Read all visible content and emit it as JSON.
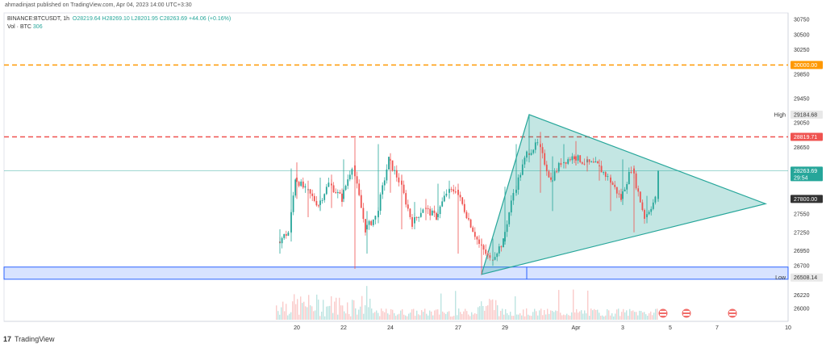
{
  "header": {
    "published": "ahmadinjast published on TradingView.com, Apr 04, 2023 14:00 UTC+3:30",
    "symbol": "BINANCE:BTCUSDT, 1h",
    "open": "O28219.64",
    "high": "H28269.10",
    "low": "L28201.95",
    "close": "C28263.69",
    "change": "+44.06 (+0.16%)",
    "vol_label": "Vol · BTC",
    "vol_value": "306"
  },
  "brand": {
    "logo": "17",
    "name": "TradingView"
  },
  "colors": {
    "up": "#26a69a",
    "down": "#ef5350",
    "triangle": "#26a69a",
    "resistance": "#ef5350",
    "target": "#ff9800",
    "support_zone": "#2962ff"
  },
  "chart_data": {
    "type": "candlestick",
    "instrument": "BINANCE:BTCUSDT",
    "timeframe": "1h",
    "x_ticks": [
      "20",
      "22",
      "24",
      "27",
      "29",
      "Apr",
      "3",
      "5",
      "7",
      "10"
    ],
    "y_ticks": [
      30750,
      30500,
      30250,
      29850,
      29450,
      29050,
      28650,
      27550,
      27250,
      26950,
      26700,
      26220,
      26000
    ],
    "ylim": [
      25900,
      30850
    ],
    "price_labels": [
      {
        "name": "target",
        "value": "30000.00",
        "color": "#ff9800"
      },
      {
        "name": "high",
        "label": "High",
        "value": "29184.68",
        "color": "#e8e8e8"
      },
      {
        "name": "resistance",
        "value": "28819.71",
        "color": "#ef5350"
      },
      {
        "name": "last",
        "value": "28263.69",
        "countdown": "29:54",
        "color": "#26a69a"
      },
      {
        "name": "level",
        "value": "27800.00",
        "color": "#333333"
      },
      {
        "name": "low",
        "label": "Low",
        "value": "26508.14",
        "color": "#e8e8e8"
      }
    ],
    "horizontal_lines": [
      {
        "value": 30000,
        "style": "dashed",
        "color": "#ff9800"
      },
      {
        "value": 28819.71,
        "style": "dashed",
        "color": "#ef5350"
      }
    ],
    "support_zone": {
      "from": 26480,
      "to": 26680
    },
    "triangle": {
      "points": [
        [
          "Mar 28",
          26560
        ],
        [
          "Mar 30",
          29184.68
        ],
        [
          "Apr 8",
          27720
        ]
      ]
    },
    "series": [
      {
        "candles": [
          {
            "t": "Mar 19",
            "o": 27100,
            "h": 27300,
            "l": 26900,
            "c": 27250
          },
          {
            "t": "Mar 19",
            "o": 27250,
            "h": 28300,
            "l": 27100,
            "c": 28150
          },
          {
            "t": "Mar 20",
            "o": 28150,
            "h": 28400,
            "l": 27800,
            "c": 27950
          },
          {
            "t": "Mar 20",
            "o": 27950,
            "h": 28100,
            "l": 27500,
            "c": 27700
          },
          {
            "t": "Mar 21",
            "o": 27700,
            "h": 28150,
            "l": 27600,
            "c": 28050
          },
          {
            "t": "Mar 21",
            "o": 28050,
            "h": 28200,
            "l": 27650,
            "c": 27800
          },
          {
            "t": "Mar 22",
            "o": 27800,
            "h": 28450,
            "l": 27750,
            "c": 28350
          },
          {
            "t": "Mar 22",
            "o": 28350,
            "h": 28800,
            "l": 26650,
            "c": 27300
          },
          {
            "t": "Mar 23",
            "o": 27300,
            "h": 27600,
            "l": 26900,
            "c": 27500
          },
          {
            "t": "Mar 23",
            "o": 27500,
            "h": 28700,
            "l": 27400,
            "c": 28450
          },
          {
            "t": "Mar 24",
            "o": 28450,
            "h": 28550,
            "l": 27900,
            "c": 28100
          },
          {
            "t": "Mar 24",
            "o": 28100,
            "h": 28200,
            "l": 27300,
            "c": 27400
          },
          {
            "t": "Mar 25",
            "o": 27400,
            "h": 27750,
            "l": 27300,
            "c": 27650
          },
          {
            "t": "Mar 25",
            "o": 27650,
            "h": 27800,
            "l": 27450,
            "c": 27500
          },
          {
            "t": "Mar 26",
            "o": 27500,
            "h": 28050,
            "l": 27450,
            "c": 27900
          },
          {
            "t": "Mar 26",
            "o": 27900,
            "h": 28100,
            "l": 27800,
            "c": 27950
          },
          {
            "t": "Mar 27",
            "o": 27950,
            "h": 28050,
            "l": 26900,
            "c": 27050
          },
          {
            "t": "Mar 28",
            "o": 27050,
            "h": 27150,
            "l": 26560,
            "c": 26800
          },
          {
            "t": "Mar 28",
            "o": 26800,
            "h": 27150,
            "l": 26700,
            "c": 27100
          },
          {
            "t": "Mar 29",
            "o": 27100,
            "h": 28000,
            "l": 27050,
            "c": 27900
          },
          {
            "t": "Mar 29",
            "o": 27900,
            "h": 28700,
            "l": 27850,
            "c": 28550
          },
          {
            "t": "Mar 30",
            "o": 28550,
            "h": 29170,
            "l": 28400,
            "c": 28700
          },
          {
            "t": "Mar 30",
            "o": 28700,
            "h": 28900,
            "l": 27900,
            "c": 28100
          },
          {
            "t": "Mar 31",
            "o": 28100,
            "h": 28500,
            "l": 27600,
            "c": 28400
          },
          {
            "t": "Mar 31",
            "o": 28400,
            "h": 28700,
            "l": 28300,
            "c": 28500
          },
          {
            "t": "Apr 1",
            "o": 28500,
            "h": 28750,
            "l": 28350,
            "c": 28400
          },
          {
            "t": "Apr 1",
            "o": 28400,
            "h": 28500,
            "l": 28250,
            "c": 28350
          },
          {
            "t": "Apr 2",
            "o": 28350,
            "h": 28450,
            "l": 28100,
            "c": 28150
          },
          {
            "t": "Apr 2",
            "o": 28150,
            "h": 28200,
            "l": 27600,
            "c": 27800
          },
          {
            "t": "Apr 3",
            "o": 27800,
            "h": 28450,
            "l": 27700,
            "c": 28300
          },
          {
            "t": "Apr 3",
            "o": 28300,
            "h": 28350,
            "l": 27250,
            "c": 27500
          },
          {
            "t": "Apr 4",
            "o": 27500,
            "h": 27850,
            "l": 27400,
            "c": 27800
          },
          {
            "t": "Apr 4",
            "o": 27800,
            "h": 28270,
            "l": 27750,
            "c": 28263.69
          }
        ]
      }
    ]
  }
}
